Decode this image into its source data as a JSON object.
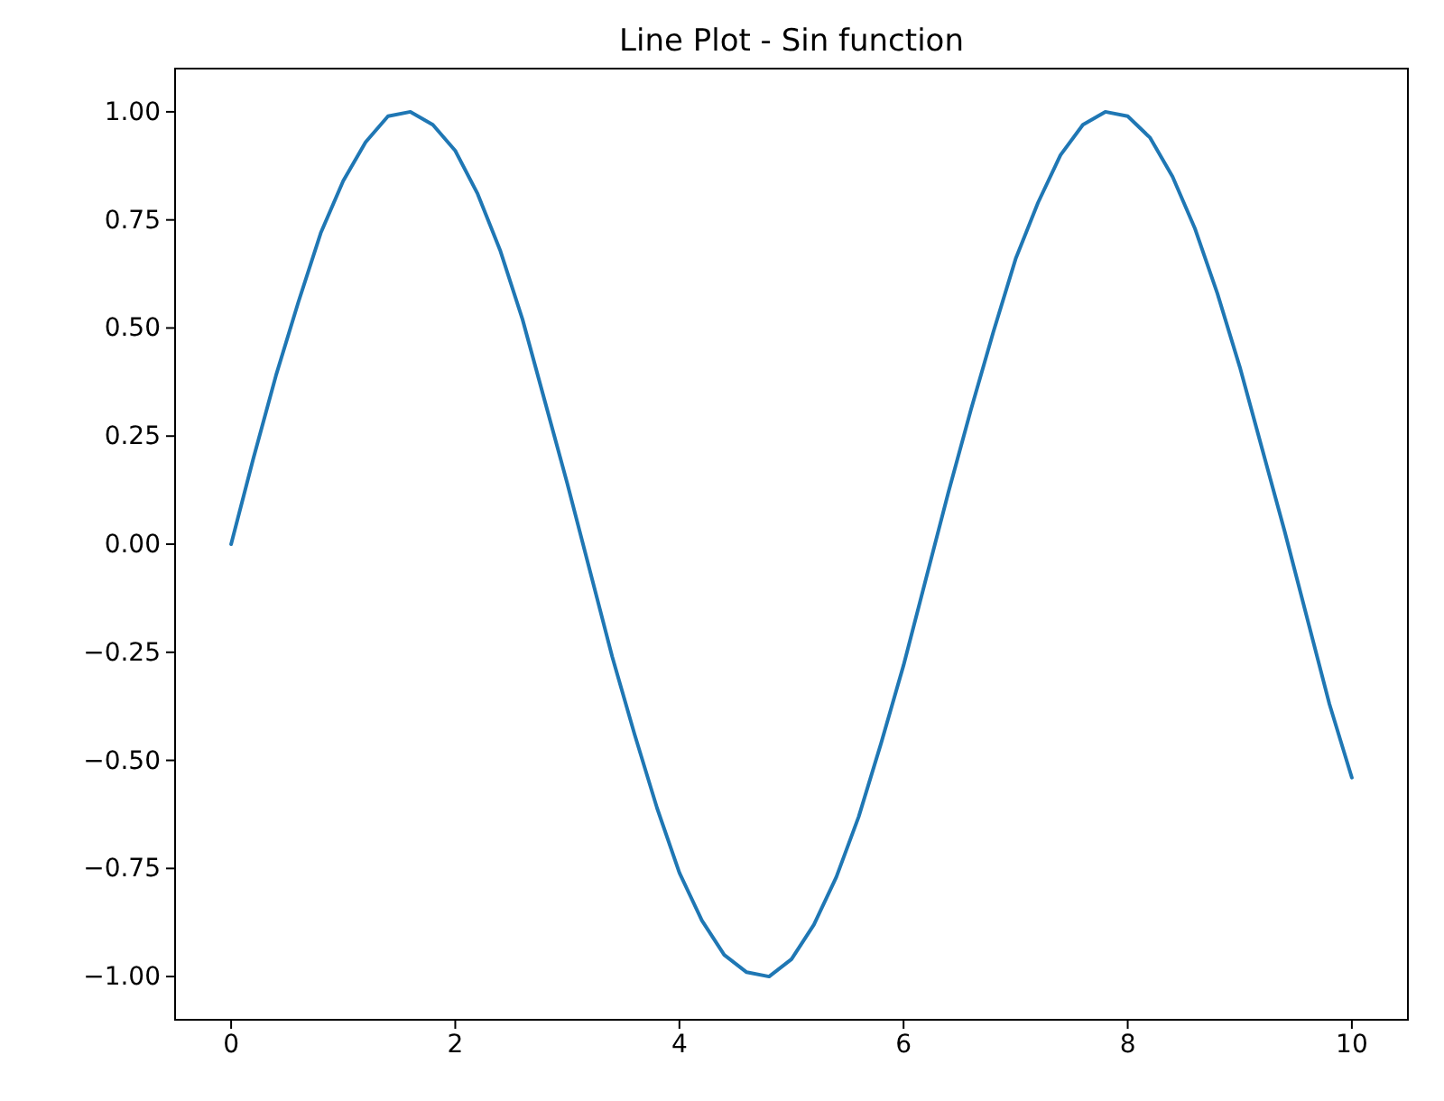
{
  "chart_data": {
    "type": "line",
    "title": "Line Plot - Sin function",
    "x": [
      0,
      0.2,
      0.4,
      0.6,
      0.8,
      1.0,
      1.2,
      1.4,
      1.6,
      1.8,
      2.0,
      2.2,
      2.4,
      2.6,
      2.8,
      3.0,
      3.2,
      3.4,
      3.6,
      3.8,
      4.0,
      4.2,
      4.4,
      4.6,
      4.8,
      5.0,
      5.2,
      5.4,
      5.6,
      5.8,
      6.0,
      6.2,
      6.4,
      6.6,
      6.8,
      7.0,
      7.2,
      7.4,
      7.6,
      7.8,
      8.0,
      8.2,
      8.4,
      8.6,
      8.8,
      9.0,
      9.2,
      9.4,
      9.6,
      9.8,
      10.0
    ],
    "series": [
      {
        "color": "#1f77b4",
        "values": [
          0,
          0.2,
          0.39,
          0.56,
          0.72,
          0.84,
          0.93,
          0.99,
          1.0,
          0.97,
          0.91,
          0.81,
          0.68,
          0.52,
          0.33,
          0.14,
          -0.06,
          -0.26,
          -0.44,
          -0.61,
          -0.76,
          -0.87,
          -0.95,
          -0.99,
          -1.0,
          -0.96,
          -0.88,
          -0.77,
          -0.63,
          -0.46,
          -0.28,
          -0.08,
          0.12,
          0.31,
          0.49,
          0.66,
          0.79,
          0.9,
          0.97,
          1.0,
          0.99,
          0.94,
          0.85,
          0.73,
          0.58,
          0.41,
          0.22,
          0.03,
          -0.17,
          -0.37,
          -0.54
        ]
      }
    ],
    "xlim": [
      -0.5,
      10.5
    ],
    "xticks": [
      0,
      2,
      4,
      6,
      8,
      10
    ],
    "ylim": [
      -1.1,
      1.1
    ],
    "yticks": [
      {
        "value": -1,
        "label": "−1.00"
      },
      {
        "value": -0.75,
        "label": "−0.75"
      },
      {
        "value": -0.5,
        "label": "−0.50"
      },
      {
        "value": -0.25,
        "label": "−0.25"
      },
      {
        "value": 0,
        "label": "0.00"
      },
      {
        "value": 0.25,
        "label": "0.25"
      },
      {
        "value": 0.5,
        "label": "0.50"
      },
      {
        "value": 0.75,
        "label": "0.75"
      },
      {
        "value": 1,
        "label": "1.00"
      }
    ],
    "marker": "none",
    "line_style": "solid"
  }
}
